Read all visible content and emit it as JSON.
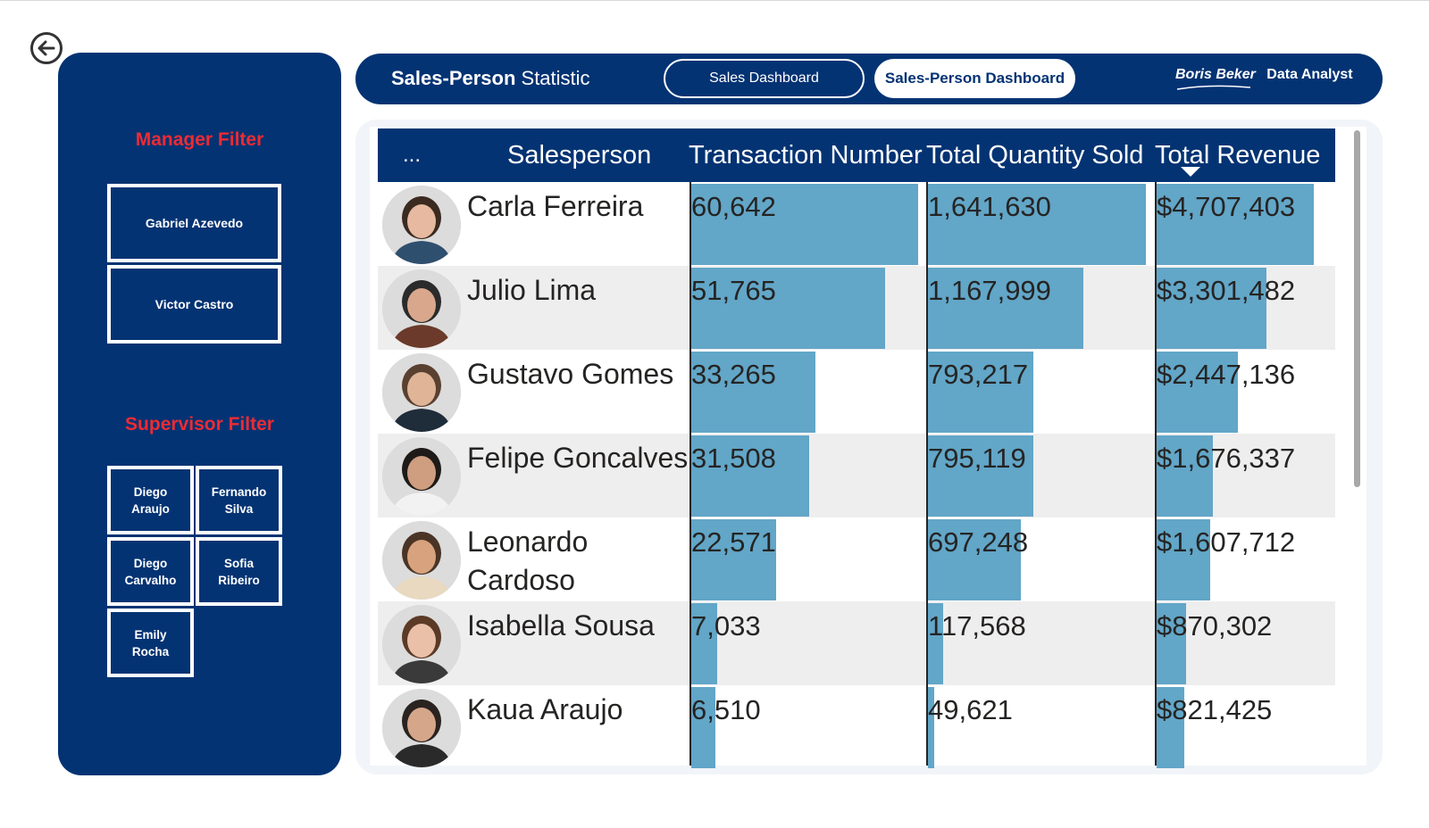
{
  "sidebar": {
    "manager_title": "Manager Filter",
    "managers": [
      "Gabriel Azevedo",
      "Victor Castro"
    ],
    "supervisor_title": "Supervisor Filter",
    "supervisors": [
      {
        "first": "Diego",
        "last": "Araujo"
      },
      {
        "first": "Fernando",
        "last": "Silva"
      },
      {
        "first": "Diego",
        "last": "Carvalho"
      },
      {
        "first": "Sofia",
        "last": "Ribeiro"
      },
      {
        "first": "Emily",
        "last": "Rocha"
      }
    ]
  },
  "header": {
    "title_bold": "Sales-Person",
    "title_rest": " Statistic",
    "nav_sales": "Sales Dashboard",
    "nav_person": "Sales-Person Dashboard",
    "analyst_name": "Boris Beker",
    "analyst_role": "Data Analyst"
  },
  "table": {
    "columns": {
      "more": "...",
      "salesperson": "Salesperson",
      "transactions": "Transaction Number",
      "quantity": "Total Quantity Sold",
      "revenue": "Total Revenue"
    },
    "sort_column": "Total Revenue",
    "sort_direction": "descending",
    "rows": [
      {
        "name": "Carla Ferreira",
        "transactions": "60,642",
        "quantity": "1,641,630",
        "revenue": "$4,707,403",
        "tn": 60642,
        "qt": 1641630,
        "rv": 4707403
      },
      {
        "name": "Julio Lima",
        "transactions": "51,765",
        "quantity": "1,167,999",
        "revenue": "$3,301,482",
        "tn": 51765,
        "qt": 1167999,
        "rv": 3301482
      },
      {
        "name": "Gustavo Gomes",
        "transactions": "33,265",
        "quantity": "793,217",
        "revenue": "$2,447,136",
        "tn": 33265,
        "qt": 793217,
        "rv": 2447136
      },
      {
        "name": "Felipe Goncalves",
        "transactions": "31,508",
        "quantity": "795,119",
        "revenue": "$1,676,337",
        "tn": 31508,
        "qt": 795119,
        "rv": 1676337
      },
      {
        "name": "Leonardo Cardoso",
        "transactions": "22,571",
        "quantity": "697,248",
        "revenue": "$1,607,712",
        "tn": 22571,
        "qt": 697248,
        "rv": 1607712
      },
      {
        "name": "Isabella Sousa",
        "transactions": "7,033",
        "quantity": "117,568",
        "revenue": "$870,302",
        "tn": 7033,
        "qt": 117568,
        "rv": 870302
      },
      {
        "name": "Kaua Araujo",
        "transactions": "6,510",
        "quantity": "49,621",
        "revenue": "$821,425",
        "tn": 6510,
        "qt": 49621,
        "rv": 821425
      }
    ]
  },
  "colors": {
    "navy": "#043373",
    "accent_red": "#ec2b34",
    "bar": "#62a6c8",
    "alt_row": "#efeeee"
  },
  "icons": {
    "back": "back-arrow-circle-icon",
    "sort": "sort-descending-icon"
  }
}
